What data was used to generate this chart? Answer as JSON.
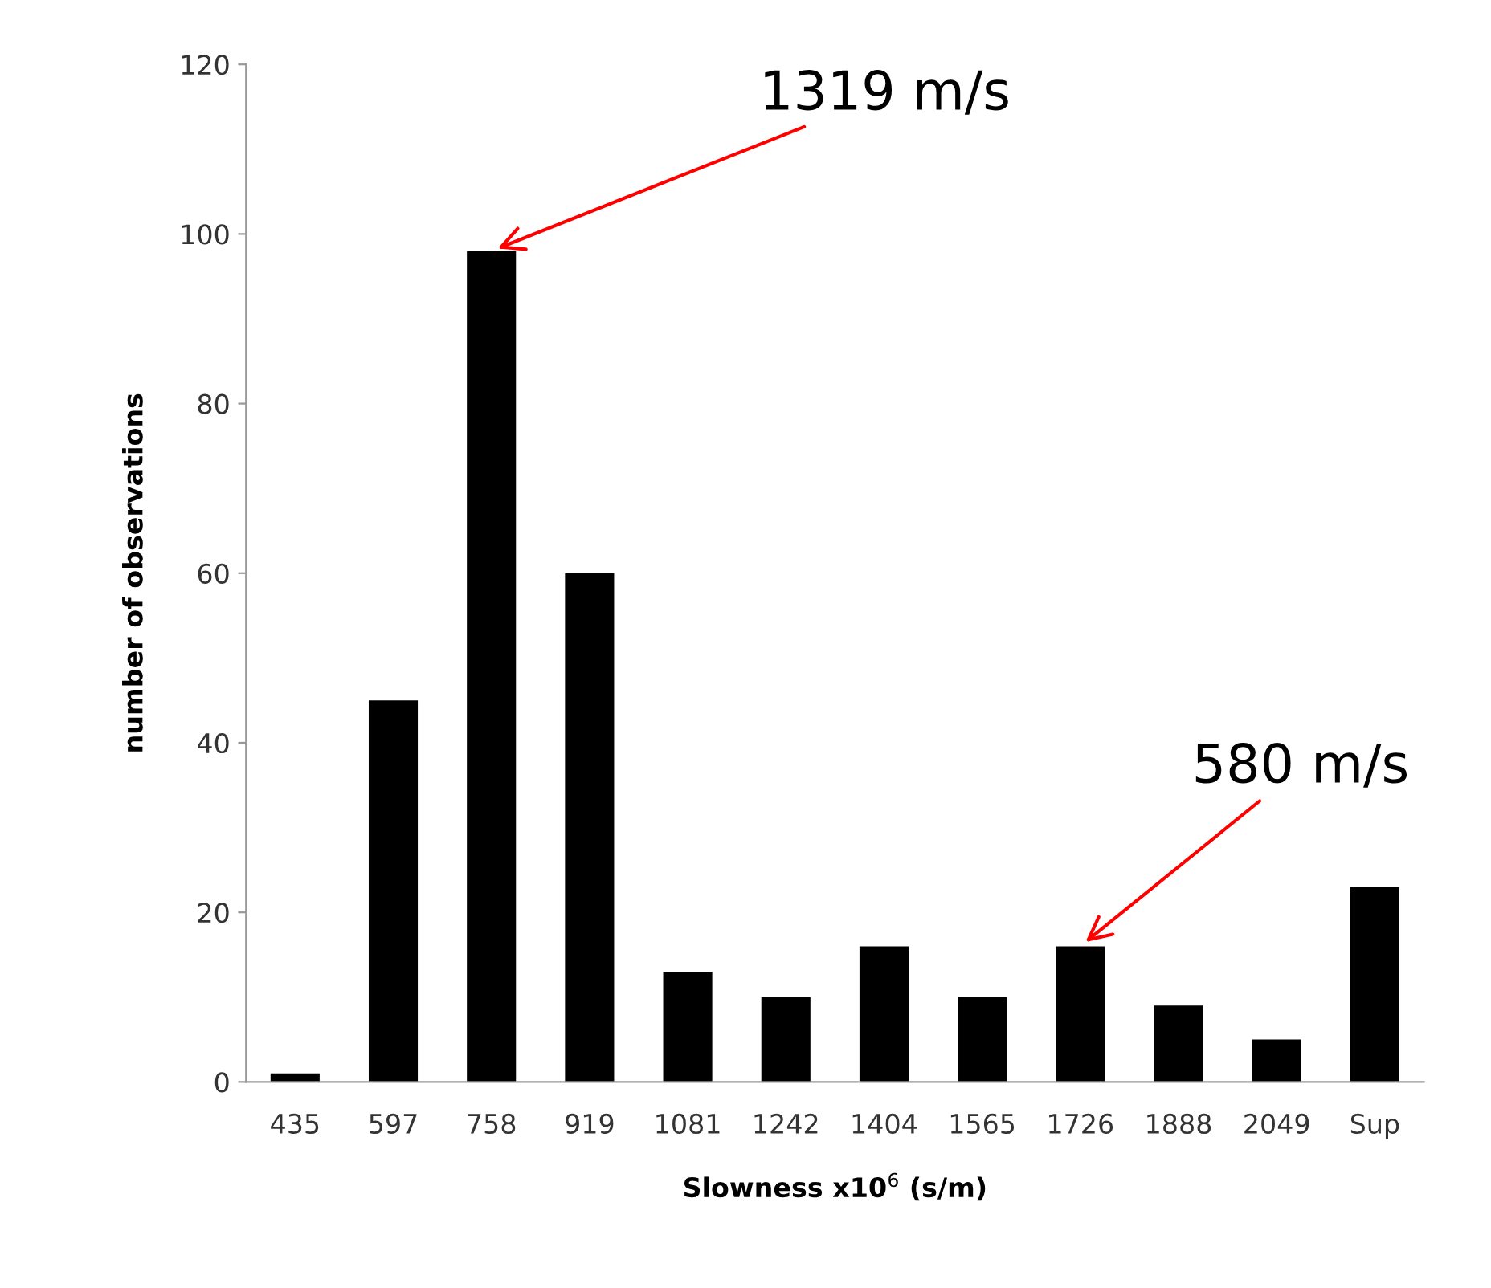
{
  "chart_data": {
    "type": "bar",
    "xlabel": "Slowness x10$^{6}$ (s/m)",
    "ylabel": "number of observations",
    "categories": [
      "435",
      "597",
      "758",
      "919",
      "1081",
      "1242",
      "1404",
      "1565",
      "1726",
      "1888",
      "2049",
      "Sup"
    ],
    "values": [
      1,
      45,
      98,
      60,
      13,
      10,
      16,
      10,
      16,
      9,
      5,
      23
    ],
    "color": "#000000",
    "ylim": [
      0,
      120
    ],
    "yticks": [
      0,
      20,
      40,
      60,
      80,
      100,
      120
    ],
    "grid": false,
    "annotations": [
      {
        "text": "1319 m/s",
        "x": "758",
        "y": 98
      },
      {
        "text": "580 m/s",
        "x": "1726",
        "y": 16
      }
    ]
  }
}
